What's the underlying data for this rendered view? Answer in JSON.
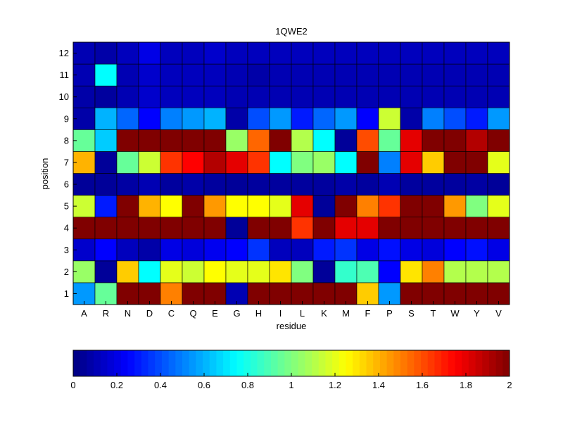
{
  "chart_data": {
    "type": "heatmap",
    "title": "1QWE2",
    "xlabel": "residue",
    "ylabel": "position",
    "x_categories": [
      "A",
      "R",
      "N",
      "D",
      "C",
      "Q",
      "E",
      "G",
      "H",
      "I",
      "L",
      "K",
      "M",
      "F",
      "P",
      "S",
      "T",
      "W",
      "Y",
      "V"
    ],
    "y_categories": [
      "1",
      "2",
      "3",
      "4",
      "5",
      "6",
      "7",
      "8",
      "9",
      "10",
      "11",
      "12"
    ],
    "values": [
      [
        0.55,
        0.95,
        2.0,
        2.0,
        1.5,
        2.0,
        2.0,
        0.1,
        2.0,
        2.0,
        2.0,
        2.0,
        2.0,
        1.35,
        0.55,
        2.0,
        2.0,
        2.0,
        2.0,
        2.0
      ],
      [
        1.05,
        0.05,
        1.35,
        0.75,
        1.2,
        1.15,
        1.25,
        1.2,
        1.2,
        1.3,
        1.0,
        0.05,
        0.85,
        0.9,
        0.25,
        1.3,
        1.5,
        1.1,
        1.1,
        1.1
      ],
      [
        0.15,
        0.25,
        0.12,
        0.08,
        0.2,
        0.18,
        0.22,
        0.25,
        0.35,
        0.12,
        0.12,
        0.3,
        0.35,
        0.2,
        0.28,
        0.2,
        0.18,
        0.25,
        0.28,
        0.2
      ],
      [
        2.0,
        2.0,
        2.0,
        2.0,
        2.0,
        2.0,
        2.0,
        0.05,
        2.0,
        2.0,
        1.65,
        2.0,
        1.8,
        1.8,
        2.0,
        2.0,
        2.0,
        2.0,
        2.0,
        2.0
      ],
      [
        1.15,
        0.3,
        2.0,
        1.4,
        1.25,
        2.0,
        1.45,
        1.25,
        1.25,
        1.2,
        1.8,
        0.05,
        2.0,
        1.5,
        1.65,
        2.0,
        2.0,
        1.45,
        1.0,
        1.2
      ],
      [
        0.05,
        0.05,
        0.07,
        0.1,
        0.06,
        0.08,
        0.06,
        0.05,
        0.06,
        0.06,
        0.06,
        0.06,
        0.08,
        0.06,
        0.1,
        0.06,
        0.06,
        0.06,
        0.07,
        0.05
      ],
      [
        1.4,
        0.05,
        0.95,
        1.15,
        1.65,
        1.75,
        1.9,
        1.8,
        1.65,
        0.75,
        1.0,
        1.05,
        0.75,
        2.0,
        0.5,
        1.8,
        1.35,
        2.0,
        2.0,
        1.2
      ],
      [
        0.95,
        0.65,
        2.0,
        2.0,
        2.0,
        2.0,
        2.0,
        1.05,
        1.55,
        2.0,
        1.1,
        0.75,
        0.05,
        1.6,
        0.95,
        1.8,
        2.0,
        2.0,
        1.9,
        2.0
      ],
      [
        0.08,
        0.6,
        0.45,
        0.25,
        0.5,
        0.55,
        0.6,
        0.08,
        0.4,
        0.55,
        0.3,
        0.45,
        0.55,
        0.25,
        1.15,
        0.08,
        0.5,
        0.4,
        0.3,
        0.55
      ],
      [
        0.08,
        0.06,
        0.1,
        0.15,
        0.12,
        0.12,
        0.12,
        0.1,
        0.1,
        0.1,
        0.1,
        0.1,
        0.1,
        0.1,
        0.1,
        0.1,
        0.1,
        0.1,
        0.1,
        0.1
      ],
      [
        0.1,
        0.75,
        0.1,
        0.15,
        0.12,
        0.12,
        0.12,
        0.1,
        0.08,
        0.1,
        0.1,
        0.1,
        0.1,
        0.1,
        0.1,
        0.1,
        0.1,
        0.1,
        0.1,
        0.1
      ],
      [
        0.1,
        0.08,
        0.12,
        0.2,
        0.12,
        0.12,
        0.15,
        0.12,
        0.12,
        0.12,
        0.12,
        0.12,
        0.12,
        0.12,
        0.12,
        0.12,
        0.12,
        0.12,
        0.12,
        0.12
      ]
    ],
    "colorbar": {
      "range": [
        0,
        2
      ],
      "ticks": [
        "0",
        "0.2",
        "0.4",
        "0.6",
        "0.8",
        "1",
        "1.2",
        "1.4",
        "1.6",
        "1.8",
        "2"
      ],
      "placement": "bottom",
      "colormap": "jet"
    },
    "grid": false
  }
}
